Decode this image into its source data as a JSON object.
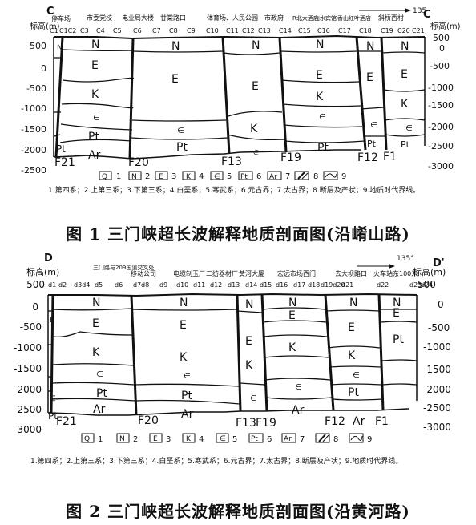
{
  "figure1": {
    "corner_letter": "C",
    "corner_letter_right": "C",
    "elev_unit": "标高(m)",
    "elev_unit_right": "标高(m)",
    "north_angle": "135",
    "yticks": [
      "500",
      "0",
      "-500",
      "-1000",
      "-1500",
      "-2000",
      "-2500",
      "-3000"
    ],
    "place_names": [
      "停车场",
      "市委党校",
      "电业局大楼",
      "甘棠路口",
      "体育场、人民公园",
      "市政府",
      "R北大酒店",
      "山水宾馆",
      "香山红叶酒店",
      "斜桥西村"
    ],
    "station_labels": [
      "C1",
      "C1C2",
      "C3",
      "C4",
      "C5",
      "C6",
      "C7",
      "C8",
      "C9",
      "C10",
      "C11",
      "C12",
      "C13",
      "C14",
      "C15",
      "C16",
      "C17",
      "C18",
      "C19",
      "C20",
      "C21"
    ],
    "unit_labels": {
      "n": "N",
      "e": "E",
      "k": "K",
      "cambrian": "∈",
      "pt": "Pt",
      "ar": "Ar"
    },
    "fault_labels": [
      "F21",
      "F20",
      "F13",
      "F19",
      "F12",
      "F1"
    ],
    "legend_items": [
      {
        "sym": "Q",
        "num": "1"
      },
      {
        "sym": "N",
        "num": "2"
      },
      {
        "sym": "E",
        "num": "3"
      },
      {
        "sym": "K",
        "num": "4"
      },
      {
        "sym": "∈",
        "num": "5"
      },
      {
        "sym": "Pt",
        "num": "6"
      },
      {
        "sym": "Ar",
        "num": "7"
      },
      {
        "sym": "",
        "num": "8"
      },
      {
        "sym": "",
        "num": "9"
      }
    ],
    "legend_text": "1.第四系；2.上第三系；3.下第三系；4.白垩系；5.寒武系；6.元古界；7.太古界；8.断层及产状；9.地质时代界线。",
    "caption": "图 1 三门峡超长波解释地质剖面图(沿崤山路)"
  },
  "figure2": {
    "corner_letter": "D",
    "corner_letter_right": "D'",
    "elev_unit": "标高(m)",
    "elev_unit_right": "标高(m)",
    "north_angle": "135°",
    "yticks": [
      "500",
      "0",
      "-500",
      "-1000",
      "-1500",
      "-2000",
      "-2500",
      "-3000"
    ],
    "place_names": [
      "三门路与209国道交叉处",
      "移动公司",
      "电缆制玉厂",
      "二纺器材厂",
      "黄河大厦",
      "宏远市场西门",
      "去大坝路口",
      "火车站东100米"
    ],
    "station_labels": [
      "d1",
      "d2",
      "d3d4",
      "d5",
      "d6",
      "d7",
      "d8",
      "d9",
      "d10",
      "d11",
      "d12",
      "d13",
      "d14",
      "d15",
      "d16",
      "d17",
      "d18",
      "d19d20",
      "d21",
      "d22",
      "d23",
      "d24"
    ],
    "unit_labels": {
      "n": "N",
      "e": "E",
      "k": "K",
      "cambrian": "∈",
      "pt": "Pt",
      "ar": "Ar"
    },
    "fault_labels": [
      "F21",
      "F20",
      "F13",
      "F19",
      "F12",
      "F1"
    ],
    "legend_items": [
      {
        "sym": "Q",
        "num": "1"
      },
      {
        "sym": "N",
        "num": "2"
      },
      {
        "sym": "E",
        "num": "3"
      },
      {
        "sym": "K",
        "num": "4"
      },
      {
        "sym": "∈",
        "num": "5"
      },
      {
        "sym": "Pt",
        "num": "6"
      },
      {
        "sym": "Ar",
        "num": "7"
      },
      {
        "sym": "",
        "num": "8"
      },
      {
        "sym": "",
        "num": "9"
      }
    ],
    "legend_text": "1.第四系；2.上第三系；3.下第三系；4.白垩系；5.寒武系；6.元古界；7.太古界；8.断层及产状；9.地质时代界线。",
    "caption": "图 2 三门峡超长波解释地质剖面图(沿黄河路)"
  }
}
